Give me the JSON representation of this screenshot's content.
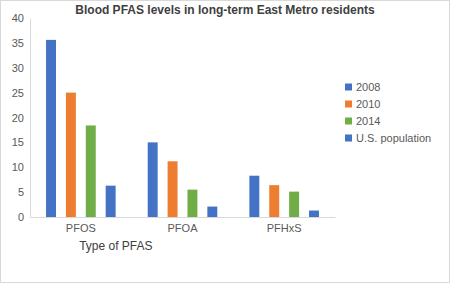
{
  "chart_data": {
    "type": "bar",
    "title": "Blood PFAS levels in long-term East Metro residents",
    "x_label": "Type of PFAS",
    "categories": [
      "PFOS",
      "PFOA",
      "PFHxS"
    ],
    "series": [
      {
        "name": "2008",
        "color": "#4472c4",
        "values": [
          35.6,
          15.0,
          8.3
        ]
      },
      {
        "name": "2010",
        "color": "#ed7d31",
        "values": [
          25.0,
          11.2,
          6.4
        ]
      },
      {
        "name": "2014",
        "color": "#70ad47",
        "values": [
          18.4,
          5.5,
          5.1
        ]
      },
      {
        "name": "U.S. population",
        "color": "#4472c4",
        "values": [
          6.3,
          2.1,
          1.3
        ]
      }
    ],
    "ylim": [
      0,
      40
    ],
    "yticks": [
      0,
      5,
      10,
      15,
      20,
      25,
      30,
      35,
      40
    ],
    "grid": false,
    "legend": "right"
  }
}
